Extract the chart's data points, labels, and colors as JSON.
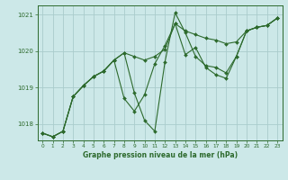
{
  "xlabel": "Graphe pression niveau de la mer (hPa)",
  "background_color": "#cce8e8",
  "grid_color": "#aacccc",
  "line_color": "#2d6a2d",
  "xlim": [
    -0.5,
    23.5
  ],
  "ylim": [
    1017.55,
    1021.25
  ],
  "yticks": [
    1018,
    1019,
    1020,
    1021
  ],
  "xticks": [
    0,
    1,
    2,
    3,
    4,
    5,
    6,
    7,
    8,
    9,
    10,
    11,
    12,
    13,
    14,
    15,
    16,
    17,
    18,
    19,
    20,
    21,
    22,
    23
  ],
  "series": [
    [
      1017.75,
      1017.65,
      1017.8,
      1018.75,
      1019.05,
      1019.3,
      1019.45,
      1019.75,
      1019.95,
      1019.85,
      1019.75,
      1019.85,
      1020.05,
      1020.75,
      1020.55,
      1020.45,
      1020.35,
      1020.3,
      1020.2,
      1020.25,
      1020.55,
      1020.65,
      1020.7,
      1020.9
    ],
    [
      1017.75,
      1017.65,
      1017.8,
      1018.75,
      1019.05,
      1019.3,
      1019.45,
      1019.75,
      1018.7,
      1018.35,
      1018.8,
      1019.65,
      1020.15,
      1020.75,
      1019.9,
      1020.1,
      1019.55,
      1019.35,
      1019.25,
      1019.85,
      1020.55,
      1020.65,
      1020.7,
      1020.9
    ],
    [
      1017.75,
      1017.65,
      1017.8,
      1018.75,
      1019.05,
      1019.3,
      1019.45,
      1019.75,
      1019.95,
      1018.85,
      1018.1,
      1017.8,
      1019.7,
      1021.05,
      1020.5,
      1019.85,
      1019.6,
      1019.55,
      1019.4,
      1019.85,
      1020.55,
      1020.65,
      1020.7,
      1020.9
    ]
  ]
}
